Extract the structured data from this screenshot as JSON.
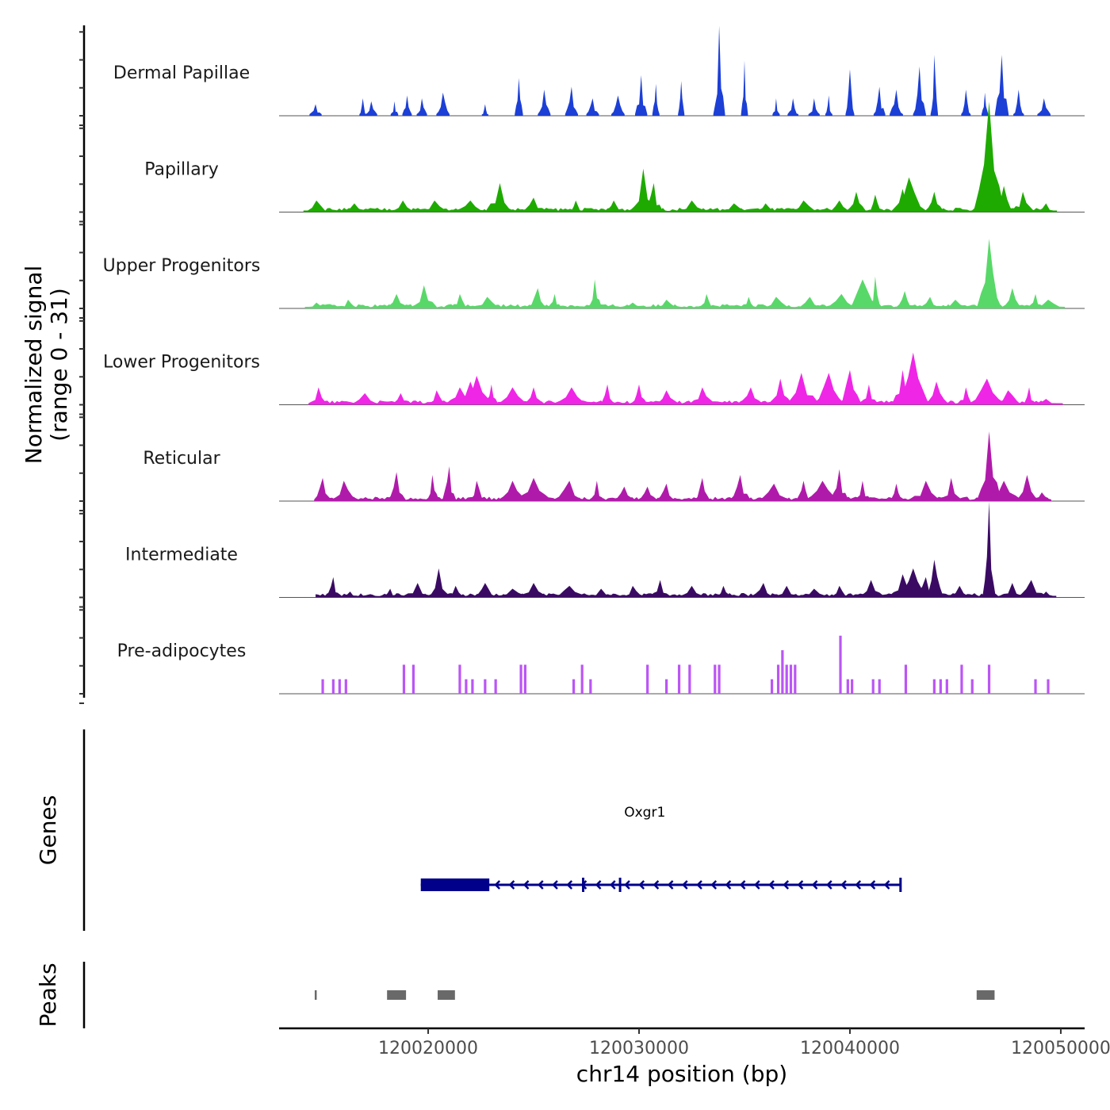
{
  "chart_data": {
    "type": "area",
    "title": "",
    "xlabel": "chr14 position (bp)",
    "ylabel": "Normalized signal\n(range 0 - 31)",
    "ylabel_lines": [
      "Normalized signal",
      "(range 0 - 31)"
    ],
    "ylim": [
      0,
      31
    ],
    "xlim": [
      120012930,
      120051130
    ],
    "x_ticks": [
      120020000,
      120030000,
      120040000,
      120050000
    ],
    "x_tick_labels": [
      "120020000",
      "120030000",
      "120040000",
      "120050000"
    ],
    "grid": false,
    "legend": "none",
    "signal_range_bp": [
      120014660,
      120049430
    ],
    "series": [
      {
        "name": "Dermal Papillae",
        "color": "#1c3fd6",
        "peaks": [
          [
            120014660,
            4
          ],
          [
            120016900,
            6
          ],
          [
            120017300,
            5
          ],
          [
            120018400,
            5
          ],
          [
            120019000,
            7
          ],
          [
            120019700,
            6
          ],
          [
            120020700,
            8
          ],
          [
            120022700,
            4
          ],
          [
            120024300,
            13
          ],
          [
            120025500,
            9
          ],
          [
            120026800,
            10
          ],
          [
            120027800,
            6
          ],
          [
            120029000,
            7
          ],
          [
            120030100,
            14
          ],
          [
            120030800,
            11
          ],
          [
            120032000,
            12
          ],
          [
            120033800,
            31
          ],
          [
            120035000,
            19
          ],
          [
            120036500,
            6
          ],
          [
            120037300,
            6
          ],
          [
            120038300,
            6
          ],
          [
            120039000,
            7
          ],
          [
            120040000,
            16
          ],
          [
            120041400,
            10
          ],
          [
            120042200,
            9
          ],
          [
            120043300,
            17
          ],
          [
            120044000,
            21
          ],
          [
            120045500,
            9
          ],
          [
            120046400,
            8
          ],
          [
            120047200,
            21
          ],
          [
            120048000,
            9
          ],
          [
            120049200,
            6
          ]
        ]
      },
      {
        "name": "Papillary",
        "color": "#1eaa00",
        "peaks": [
          [
            120014700,
            4
          ],
          [
            120016500,
            3
          ],
          [
            120018800,
            4
          ],
          [
            120020300,
            4
          ],
          [
            120022000,
            4
          ],
          [
            120023400,
            10
          ],
          [
            120025000,
            5
          ],
          [
            120027000,
            4
          ],
          [
            120028800,
            4
          ],
          [
            120030200,
            15
          ],
          [
            120030700,
            10
          ],
          [
            120032500,
            4
          ],
          [
            120034500,
            3
          ],
          [
            120036000,
            3
          ],
          [
            120037800,
            4
          ],
          [
            120039500,
            4
          ],
          [
            120040300,
            7
          ],
          [
            120041200,
            6
          ],
          [
            120042500,
            8
          ],
          [
            120042800,
            12
          ],
          [
            120044000,
            7
          ],
          [
            120046600,
            38
          ],
          [
            120047300,
            9
          ],
          [
            120048200,
            7
          ],
          [
            120049300,
            3
          ]
        ]
      },
      {
        "name": "Upper Progenitors",
        "color": "#58d868",
        "peaks": [
          [
            120014700,
            2
          ],
          [
            120016200,
            3
          ],
          [
            120018500,
            5
          ],
          [
            120019800,
            8
          ],
          [
            120021500,
            5
          ],
          [
            120022800,
            4
          ],
          [
            120025200,
            7
          ],
          [
            120026000,
            5
          ],
          [
            120027900,
            10
          ],
          [
            120029700,
            2
          ],
          [
            120031300,
            3
          ],
          [
            120033200,
            5
          ],
          [
            120035200,
            4
          ],
          [
            120036500,
            4
          ],
          [
            120038100,
            4
          ],
          [
            120039600,
            5
          ],
          [
            120040600,
            10
          ],
          [
            120041200,
            11
          ],
          [
            120042600,
            6
          ],
          [
            120043800,
            4
          ],
          [
            120045000,
            3
          ],
          [
            120046600,
            24
          ],
          [
            120047700,
            7
          ],
          [
            120048800,
            5
          ],
          [
            120049400,
            3
          ]
        ]
      },
      {
        "name": "Lower Progenitors",
        "color": "#ef26e6",
        "peaks": [
          [
            120014800,
            6
          ],
          [
            120017000,
            4
          ],
          [
            120018700,
            4
          ],
          [
            120020400,
            5
          ],
          [
            120021500,
            6
          ],
          [
            120022000,
            8
          ],
          [
            120022300,
            10
          ],
          [
            120023000,
            7
          ],
          [
            120024000,
            6
          ],
          [
            120025000,
            6
          ],
          [
            120026800,
            6
          ],
          [
            120028500,
            7
          ],
          [
            120030000,
            7
          ],
          [
            120031300,
            5
          ],
          [
            120033000,
            6
          ],
          [
            120035300,
            6
          ],
          [
            120036700,
            9
          ],
          [
            120037700,
            11
          ],
          [
            120038800,
            7
          ],
          [
            120039000,
            11
          ],
          [
            120040000,
            12
          ],
          [
            120040900,
            7
          ],
          [
            120042500,
            12
          ],
          [
            120043000,
            18
          ],
          [
            120044100,
            8
          ],
          [
            120045500,
            6
          ],
          [
            120046500,
            9
          ],
          [
            120047500,
            5
          ],
          [
            120048500,
            6
          ],
          [
            120049300,
            2
          ]
        ]
      },
      {
        "name": "Reticular",
        "color": "#b01aaa",
        "peaks": [
          [
            120015000,
            8
          ],
          [
            120016000,
            7
          ],
          [
            120018500,
            10
          ],
          [
            120020200,
            9
          ],
          [
            120021000,
            12
          ],
          [
            120022300,
            7
          ],
          [
            120024000,
            7
          ],
          [
            120025000,
            8
          ],
          [
            120026700,
            7
          ],
          [
            120028000,
            7
          ],
          [
            120029300,
            5
          ],
          [
            120030400,
            5
          ],
          [
            120031300,
            6
          ],
          [
            120033000,
            8
          ],
          [
            120034800,
            9
          ],
          [
            120036400,
            6
          ],
          [
            120037800,
            7
          ],
          [
            120038700,
            7
          ],
          [
            120039500,
            11
          ],
          [
            120040600,
            7
          ],
          [
            120042200,
            6
          ],
          [
            120043600,
            7
          ],
          [
            120044800,
            8
          ],
          [
            120046600,
            24
          ],
          [
            120047300,
            7
          ],
          [
            120048400,
            9
          ],
          [
            120049100,
            3
          ]
        ]
      },
      {
        "name": "Intermediate",
        "color": "#3a0a63",
        "peaks": [
          [
            120015500,
            7
          ],
          [
            120016300,
            2
          ],
          [
            120018200,
            3
          ],
          [
            120019500,
            5
          ],
          [
            120020500,
            10
          ],
          [
            120021300,
            4
          ],
          [
            120022700,
            5
          ],
          [
            120024000,
            3
          ],
          [
            120025000,
            5
          ],
          [
            120026700,
            4
          ],
          [
            120028200,
            3
          ],
          [
            120029700,
            4
          ],
          [
            120031000,
            6
          ],
          [
            120032500,
            4
          ],
          [
            120034000,
            4
          ],
          [
            120035900,
            5
          ],
          [
            120037000,
            4
          ],
          [
            120038300,
            3
          ],
          [
            120039500,
            4
          ],
          [
            120041000,
            6
          ],
          [
            120042500,
            8
          ],
          [
            120043000,
            10
          ],
          [
            120043600,
            7
          ],
          [
            120044000,
            13
          ],
          [
            120045200,
            4
          ],
          [
            120046600,
            33
          ],
          [
            120047700,
            5
          ],
          [
            120048600,
            6
          ],
          [
            120049300,
            2
          ]
        ]
      },
      {
        "name": "Pre-adipocytes",
        "color": "#bb55f5",
        "peaks": [
          [
            120015000,
            5
          ],
          [
            120015500,
            5
          ],
          [
            120015800,
            5
          ],
          [
            120016100,
            5
          ],
          [
            120018850,
            10
          ],
          [
            120019300,
            10
          ],
          [
            120021500,
            10
          ],
          [
            120021800,
            5
          ],
          [
            120022100,
            5
          ],
          [
            120022700,
            5
          ],
          [
            120023200,
            5
          ],
          [
            120024400,
            10
          ],
          [
            120024600,
            10
          ],
          [
            120026900,
            5
          ],
          [
            120027300,
            10
          ],
          [
            120027700,
            5
          ],
          [
            120030400,
            10
          ],
          [
            120031300,
            5
          ],
          [
            120031900,
            10
          ],
          [
            120032400,
            10
          ],
          [
            120033600,
            10
          ],
          [
            120033800,
            10
          ],
          [
            120036300,
            5
          ],
          [
            120036600,
            10
          ],
          [
            120036800,
            15
          ],
          [
            120037000,
            10
          ],
          [
            120037200,
            10
          ],
          [
            120037400,
            10
          ],
          [
            120039550,
            20
          ],
          [
            120039900,
            5
          ],
          [
            120040100,
            5
          ],
          [
            120041100,
            5
          ],
          [
            120041400,
            5
          ],
          [
            120042650,
            10
          ],
          [
            120044000,
            5
          ],
          [
            120044300,
            5
          ],
          [
            120044600,
            5
          ],
          [
            120045300,
            10
          ],
          [
            120045800,
            5
          ],
          [
            120046600,
            10
          ],
          [
            120048800,
            5
          ],
          [
            120049400,
            5
          ]
        ]
      }
    ],
    "genes": [
      {
        "name": "Oxgr1",
        "strand": "-",
        "start": 120019650,
        "end": 120042400,
        "cds_block": [
          120019650,
          120022900
        ],
        "exon_marks": [
          120027350,
          120029100,
          120042400
        ],
        "color": "#00008b"
      }
    ],
    "peaks": [
      {
        "start": 120014620,
        "end": 120014700
      },
      {
        "start": 120018050,
        "end": 120018950
      },
      {
        "start": 120020450,
        "end": 120021270
      },
      {
        "start": 120046010,
        "end": 120046860
      }
    ],
    "peaks_color": "#696969",
    "panel_labels": [
      "Genes",
      "Peaks"
    ]
  }
}
